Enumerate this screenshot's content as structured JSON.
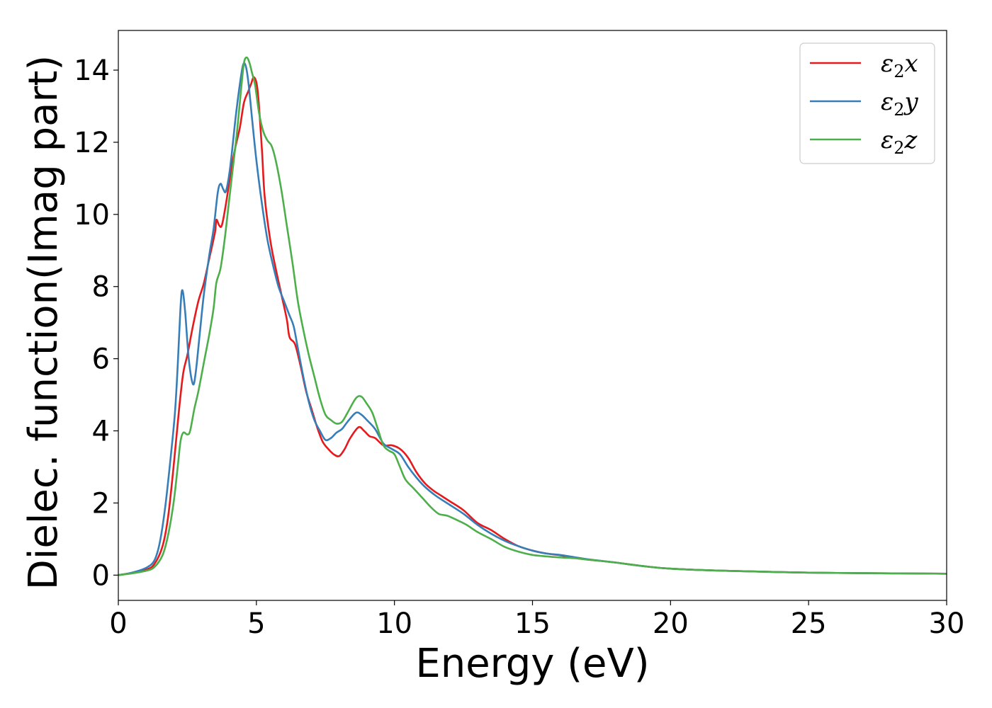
{
  "chart_data": {
    "type": "line",
    "title": "",
    "xlabel": "Energy (eV)",
    "ylabel": "Dielec. function(Imag part)",
    "xlim": [
      0,
      30
    ],
    "ylim": [
      -0.7,
      15.1
    ],
    "xticks": [
      0,
      5,
      10,
      15,
      20,
      25,
      30
    ],
    "yticks": [
      0,
      2,
      4,
      6,
      8,
      10,
      12,
      14
    ],
    "grid": false,
    "legend_position": "top-right",
    "series": [
      {
        "name": "ε2x",
        "legend_base": "ε",
        "legend_sub": "2",
        "legend_tail": "x",
        "color": "#e41a1c",
        "points": [
          [
            0,
            0
          ],
          [
            0.5,
            0.06
          ],
          [
            1.0,
            0.15
          ],
          [
            1.3,
            0.3
          ],
          [
            1.6,
            0.8
          ],
          [
            1.8,
            1.6
          ],
          [
            2.0,
            3.0
          ],
          [
            2.2,
            4.6
          ],
          [
            2.35,
            5.6
          ],
          [
            2.5,
            6.1
          ],
          [
            2.7,
            6.9
          ],
          [
            2.9,
            7.6
          ],
          [
            3.1,
            8.1
          ],
          [
            3.3,
            8.8
          ],
          [
            3.5,
            9.5
          ],
          [
            3.55,
            9.85
          ],
          [
            3.65,
            9.7
          ],
          [
            3.75,
            9.7
          ],
          [
            3.9,
            10.3
          ],
          [
            4.1,
            11.3
          ],
          [
            4.25,
            11.9
          ],
          [
            4.4,
            12.4
          ],
          [
            4.55,
            13.1
          ],
          [
            4.7,
            13.4
          ],
          [
            4.8,
            13.6
          ],
          [
            4.92,
            13.8
          ],
          [
            5.05,
            13.4
          ],
          [
            5.2,
            11.8
          ],
          [
            5.3,
            10.5
          ],
          [
            5.5,
            9.3
          ],
          [
            5.7,
            8.5
          ],
          [
            5.9,
            7.8
          ],
          [
            6.1,
            7.1
          ],
          [
            6.2,
            6.6
          ],
          [
            6.4,
            6.4
          ],
          [
            6.6,
            5.8
          ],
          [
            6.8,
            5.1
          ],
          [
            7.0,
            4.6
          ],
          [
            7.2,
            4.1
          ],
          [
            7.4,
            3.7
          ],
          [
            7.6,
            3.5
          ],
          [
            7.8,
            3.35
          ],
          [
            8.0,
            3.3
          ],
          [
            8.2,
            3.5
          ],
          [
            8.4,
            3.8
          ],
          [
            8.7,
            4.1
          ],
          [
            8.9,
            4.0
          ],
          [
            9.1,
            3.85
          ],
          [
            9.3,
            3.8
          ],
          [
            9.6,
            3.6
          ],
          [
            9.9,
            3.6
          ],
          [
            10.2,
            3.5
          ],
          [
            10.5,
            3.25
          ],
          [
            10.8,
            2.85
          ],
          [
            11.1,
            2.55
          ],
          [
            11.4,
            2.35
          ],
          [
            11.7,
            2.2
          ],
          [
            12.0,
            2.05
          ],
          [
            12.5,
            1.8
          ],
          [
            13.0,
            1.45
          ],
          [
            13.5,
            1.25
          ],
          [
            14.0,
            1.0
          ],
          [
            14.5,
            0.8
          ],
          [
            15.0,
            0.68
          ],
          [
            15.5,
            0.6
          ],
          [
            16.0,
            0.55
          ],
          [
            16.5,
            0.48
          ],
          [
            17.0,
            0.43
          ],
          [
            18.0,
            0.35
          ],
          [
            19.0,
            0.25
          ],
          [
            20.0,
            0.18
          ],
          [
            22.0,
            0.12
          ],
          [
            25.0,
            0.07
          ],
          [
            28.0,
            0.05
          ],
          [
            30.0,
            0.04
          ]
        ]
      },
      {
        "name": "ε2y",
        "legend_base": "ε",
        "legend_sub": "2",
        "legend_tail": "y",
        "color": "#377eb8",
        "points": [
          [
            0,
            0
          ],
          [
            0.5,
            0.07
          ],
          [
            1.0,
            0.2
          ],
          [
            1.3,
            0.4
          ],
          [
            1.5,
            0.9
          ],
          [
            1.7,
            1.9
          ],
          [
            1.9,
            3.3
          ],
          [
            2.05,
            4.5
          ],
          [
            2.15,
            5.8
          ],
          [
            2.25,
            7.4
          ],
          [
            2.32,
            7.9
          ],
          [
            2.42,
            7.3
          ],
          [
            2.55,
            6.0
          ],
          [
            2.7,
            5.3
          ],
          [
            2.8,
            5.6
          ],
          [
            2.95,
            6.7
          ],
          [
            3.1,
            7.8
          ],
          [
            3.3,
            8.9
          ],
          [
            3.45,
            9.6
          ],
          [
            3.6,
            10.6
          ],
          [
            3.7,
            10.85
          ],
          [
            3.8,
            10.7
          ],
          [
            3.9,
            10.65
          ],
          [
            4.05,
            11.3
          ],
          [
            4.25,
            12.7
          ],
          [
            4.4,
            13.6
          ],
          [
            4.52,
            14.15
          ],
          [
            4.62,
            14.1
          ],
          [
            4.72,
            13.6
          ],
          [
            4.85,
            12.6
          ],
          [
            5.0,
            11.5
          ],
          [
            5.2,
            10.3
          ],
          [
            5.4,
            9.3
          ],
          [
            5.6,
            8.6
          ],
          [
            5.8,
            8.0
          ],
          [
            6.0,
            7.6
          ],
          [
            6.2,
            7.2
          ],
          [
            6.35,
            6.9
          ],
          [
            6.5,
            6.3
          ],
          [
            6.7,
            5.5
          ],
          [
            6.9,
            4.8
          ],
          [
            7.1,
            4.3
          ],
          [
            7.3,
            4.0
          ],
          [
            7.5,
            3.75
          ],
          [
            7.7,
            3.8
          ],
          [
            7.9,
            3.95
          ],
          [
            8.1,
            4.05
          ],
          [
            8.3,
            4.25
          ],
          [
            8.6,
            4.5
          ],
          [
            8.8,
            4.45
          ],
          [
            9.0,
            4.3
          ],
          [
            9.3,
            4.05
          ],
          [
            9.6,
            3.65
          ],
          [
            9.9,
            3.5
          ],
          [
            10.2,
            3.35
          ],
          [
            10.5,
            3.0
          ],
          [
            10.8,
            2.7
          ],
          [
            11.1,
            2.45
          ],
          [
            11.5,
            2.2
          ],
          [
            12.0,
            1.95
          ],
          [
            12.5,
            1.7
          ],
          [
            13.0,
            1.4
          ],
          [
            13.5,
            1.15
          ],
          [
            14.0,
            0.95
          ],
          [
            14.5,
            0.8
          ],
          [
            15.0,
            0.68
          ],
          [
            15.5,
            0.6
          ],
          [
            16.0,
            0.56
          ],
          [
            16.5,
            0.5
          ],
          [
            17.0,
            0.44
          ],
          [
            18.0,
            0.35
          ],
          [
            19.0,
            0.25
          ],
          [
            20.0,
            0.18
          ],
          [
            22.0,
            0.12
          ],
          [
            25.0,
            0.07
          ],
          [
            28.0,
            0.05
          ],
          [
            30.0,
            0.04
          ]
        ]
      },
      {
        "name": "ε2z",
        "legend_base": "ε",
        "legend_sub": "2",
        "legend_tail": "z",
        "color": "#4daf4a",
        "points": [
          [
            0,
            0
          ],
          [
            0.5,
            0.05
          ],
          [
            1.0,
            0.12
          ],
          [
            1.3,
            0.22
          ],
          [
            1.6,
            0.55
          ],
          [
            1.8,
            1.1
          ],
          [
            2.0,
            2.0
          ],
          [
            2.15,
            3.0
          ],
          [
            2.25,
            3.7
          ],
          [
            2.35,
            3.95
          ],
          [
            2.5,
            3.9
          ],
          [
            2.6,
            4.0
          ],
          [
            2.75,
            4.6
          ],
          [
            2.9,
            5.1
          ],
          [
            3.1,
            5.9
          ],
          [
            3.3,
            6.7
          ],
          [
            3.45,
            7.4
          ],
          [
            3.55,
            8.1
          ],
          [
            3.7,
            8.5
          ],
          [
            3.85,
            9.3
          ],
          [
            4.0,
            10.3
          ],
          [
            4.15,
            11.3
          ],
          [
            4.3,
            12.3
          ],
          [
            4.45,
            13.5
          ],
          [
            4.55,
            14.2
          ],
          [
            4.65,
            14.35
          ],
          [
            4.75,
            14.2
          ],
          [
            4.85,
            13.9
          ],
          [
            4.95,
            13.6
          ],
          [
            5.1,
            12.8
          ],
          [
            5.25,
            12.3
          ],
          [
            5.4,
            12.05
          ],
          [
            5.55,
            11.9
          ],
          [
            5.7,
            11.5
          ],
          [
            5.9,
            10.7
          ],
          [
            6.1,
            9.7
          ],
          [
            6.3,
            8.7
          ],
          [
            6.5,
            7.6
          ],
          [
            6.7,
            6.8
          ],
          [
            6.9,
            6.1
          ],
          [
            7.1,
            5.5
          ],
          [
            7.3,
            4.9
          ],
          [
            7.5,
            4.45
          ],
          [
            7.7,
            4.3
          ],
          [
            7.9,
            4.2
          ],
          [
            8.1,
            4.25
          ],
          [
            8.3,
            4.5
          ],
          [
            8.6,
            4.9
          ],
          [
            8.8,
            4.95
          ],
          [
            9.0,
            4.75
          ],
          [
            9.2,
            4.5
          ],
          [
            9.4,
            4.05
          ],
          [
            9.6,
            3.6
          ],
          [
            9.8,
            3.45
          ],
          [
            10.0,
            3.35
          ],
          [
            10.2,
            3.0
          ],
          [
            10.4,
            2.65
          ],
          [
            10.7,
            2.4
          ],
          [
            11.0,
            2.15
          ],
          [
            11.3,
            1.9
          ],
          [
            11.6,
            1.7
          ],
          [
            11.9,
            1.65
          ],
          [
            12.2,
            1.55
          ],
          [
            12.6,
            1.4
          ],
          [
            13.0,
            1.2
          ],
          [
            13.5,
            1.0
          ],
          [
            14.0,
            0.78
          ],
          [
            14.5,
            0.65
          ],
          [
            15.0,
            0.56
          ],
          [
            15.5,
            0.52
          ],
          [
            16.0,
            0.49
          ],
          [
            16.5,
            0.47
          ],
          [
            17.0,
            0.43
          ],
          [
            18.0,
            0.35
          ],
          [
            19.0,
            0.25
          ],
          [
            20.0,
            0.18
          ],
          [
            22.0,
            0.12
          ],
          [
            25.0,
            0.07
          ],
          [
            28.0,
            0.05
          ],
          [
            30.0,
            0.04
          ]
        ]
      }
    ]
  }
}
